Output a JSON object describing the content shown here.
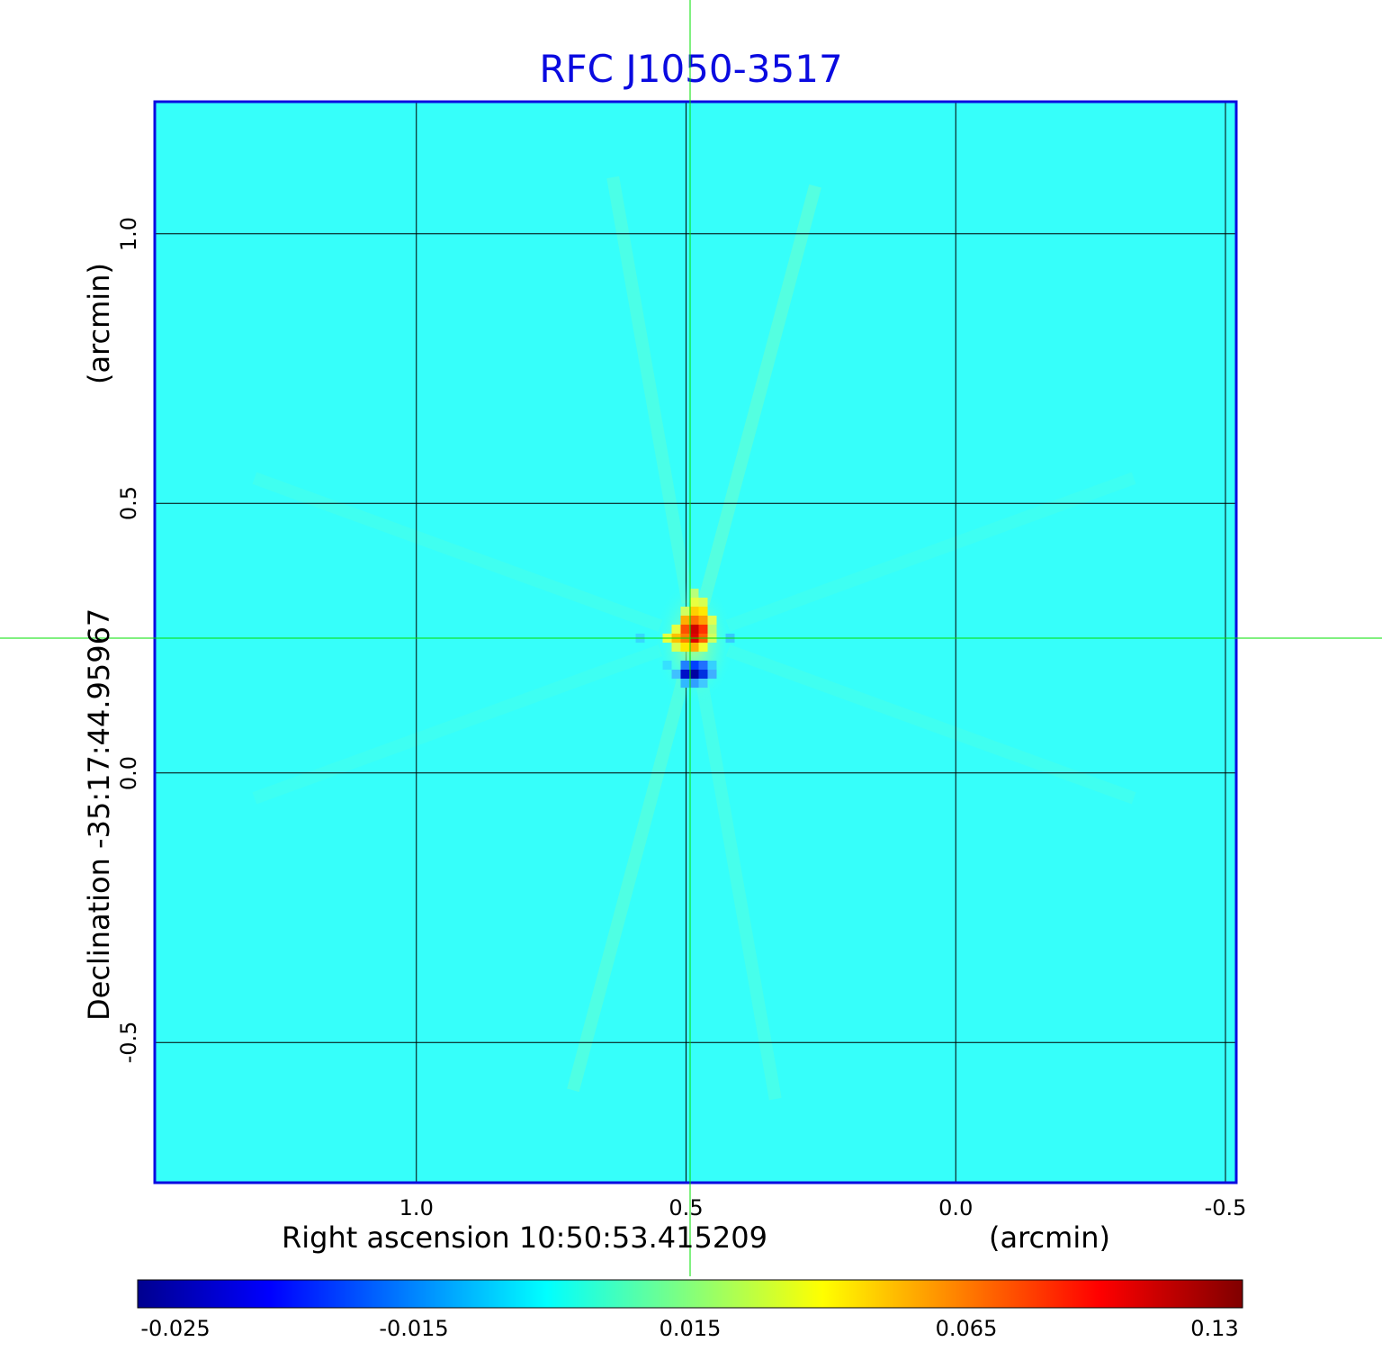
{
  "chart_data": {
    "type": "heatmap",
    "title": "RFC J1050-3517",
    "xlabel": "Right ascension  10:50:53.415209",
    "xunit": "(arcmin)",
    "ylabel": "Declination  -35:17:44.95967",
    "yunit": "(arcmin)",
    "x_ticks": [
      "1.0",
      "0.5",
      "0.0",
      "-0.5"
    ],
    "y_ticks": [
      "1.0",
      "0.5",
      "0.0",
      "-0.5"
    ],
    "xlim": [
      1.485,
      -0.52
    ],
    "ylim": [
      -0.76,
      1.245
    ],
    "grid": true,
    "colormap": "jet",
    "colorbar_ticks": [
      "-0.025",
      "-0.015",
      "0.015",
      "0.065",
      "0.13"
    ],
    "background_value": 0.0,
    "crosshair": {
      "x": 0.485,
      "y": 0.25
    },
    "features": [
      {
        "label": "peak",
        "x": 0.485,
        "y": 0.255,
        "value": 0.13
      },
      {
        "label": "negative",
        "x": 0.5,
        "y": 0.185,
        "value": -0.025
      }
    ],
    "colors": {
      "title": "#0a0ae0",
      "frame": "#0a0ae0",
      "crosshair": "#00e000",
      "background": "#36fffa"
    }
  }
}
